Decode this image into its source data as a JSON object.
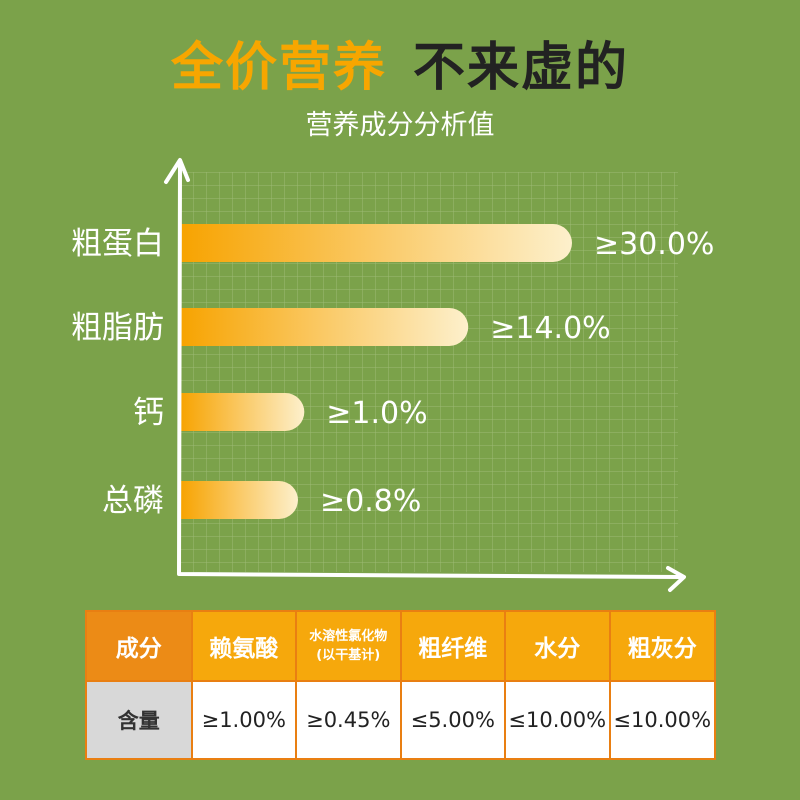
{
  "header": {
    "title_highlight": "全价营养",
    "title_rest": "不来虚的",
    "subtitle": "营养成分分析值"
  },
  "chart_data": {
    "type": "bar",
    "orientation": "horizontal",
    "title": "营养成分分析值",
    "categories": [
      "粗蛋白",
      "粗脂肪",
      "钙",
      "总磷"
    ],
    "values": [
      30.0,
      14.0,
      1.0,
      0.8
    ],
    "labels": [
      "≥30.0%",
      "≥14.0%",
      "≥1.0%",
      "≥0.8%"
    ],
    "grid": true,
    "colors": {
      "bar_start": "#f7a300",
      "bar_end": "#fdf0cc",
      "axis": "#ffffff",
      "grid": "#9cbb74"
    }
  },
  "table": {
    "headers": [
      "成分",
      "赖氨酸",
      "水溶性氯化物",
      "粗纤维",
      "水分",
      "粗灰分"
    ],
    "header_sub": {
      "2": "(以干基计)"
    },
    "row_label": "含量",
    "values": [
      "≥1.00%",
      "≥0.45%",
      "≤5.00%",
      "≤10.00%",
      "≤10.00%"
    ]
  }
}
